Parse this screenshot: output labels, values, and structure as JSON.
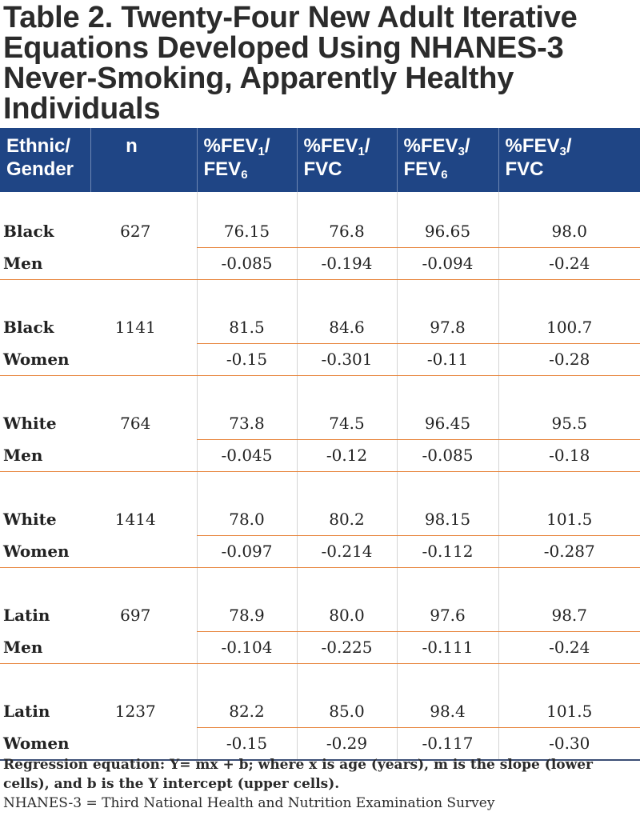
{
  "title": {
    "lines": [
      "Table 2. Twenty-Four New Adult Iterative",
      "Equations Developed Using NHANES-3",
      "Never-Smoking, Apparently Healthy",
      "Individuals"
    ]
  },
  "header": {
    "ethnic_gender": [
      "Ethnic/",
      "Gender"
    ],
    "n": "n",
    "col2": {
      "prefix": "%FEV",
      "sub1": "1",
      "slash": "/",
      "denom": "FEV",
      "sub2": "6"
    },
    "col3": {
      "prefix": "%FEV",
      "sub1": "1",
      "slash": "/",
      "denom": "FVC"
    },
    "col4": {
      "prefix": "%FEV",
      "sub1": "3",
      "slash": "/",
      "denom": "FEV",
      "sub2": "6"
    },
    "col5": {
      "prefix": "%FEV",
      "sub1": "3",
      "slash": "/",
      "denom": "FVC"
    }
  },
  "groups": [
    {
      "label1": "Black",
      "label2": "Men",
      "n": "627",
      "intercepts": [
        "76.15",
        "76.8",
        "96.65",
        "98.0"
      ],
      "slopes": [
        "-0.085",
        "-0.194",
        "-0.094",
        "-0.24"
      ]
    },
    {
      "label1": "Black",
      "label2": "Women",
      "n": "1141",
      "intercepts": [
        "81.5",
        "84.6",
        "97.8",
        "100.7"
      ],
      "slopes": [
        "-0.15",
        "-0.301",
        "-0.11",
        "-0.28"
      ]
    },
    {
      "label1": "White",
      "label2": "Men",
      "n": "764",
      "intercepts": [
        "73.8",
        "74.5",
        "96.45",
        "95.5"
      ],
      "slopes": [
        "-0.045",
        "-0.12",
        "-0.085",
        "-0.18"
      ]
    },
    {
      "label1": "White",
      "label2": "Women",
      "n": "1414",
      "intercepts": [
        "78.0",
        "80.2",
        "98.15",
        "101.5"
      ],
      "slopes": [
        "-0.097",
        "-0.214",
        "-0.112",
        "-0.287"
      ]
    },
    {
      "label1": "Latin",
      "label2": "Men",
      "n": "697",
      "intercepts": [
        "78.9",
        "80.0",
        "97.6",
        "98.7"
      ],
      "slopes": [
        "-0.104",
        "-0.225",
        "-0.111",
        "-0.24"
      ]
    },
    {
      "label1": "Latin",
      "label2": "Women",
      "n": "1237",
      "intercepts": [
        "82.2",
        "85.0",
        "98.4",
        "101.5"
      ],
      "slopes": [
        "-0.15",
        "-0.29",
        "-0.117",
        "-0.30"
      ]
    }
  ],
  "footnotes": {
    "regression": "Regression equation: Y= mx + b; where x is age (years), m is the slope (lower cells), and b is the Y intercept (upper cells).",
    "abbrev": "NHANES-3 = Third National Health and Nutrition Examination Survey"
  },
  "colors": {
    "header_bg": "#1f4585",
    "rule": "#e7833a",
    "bottom_rule": "#3c4e75"
  }
}
